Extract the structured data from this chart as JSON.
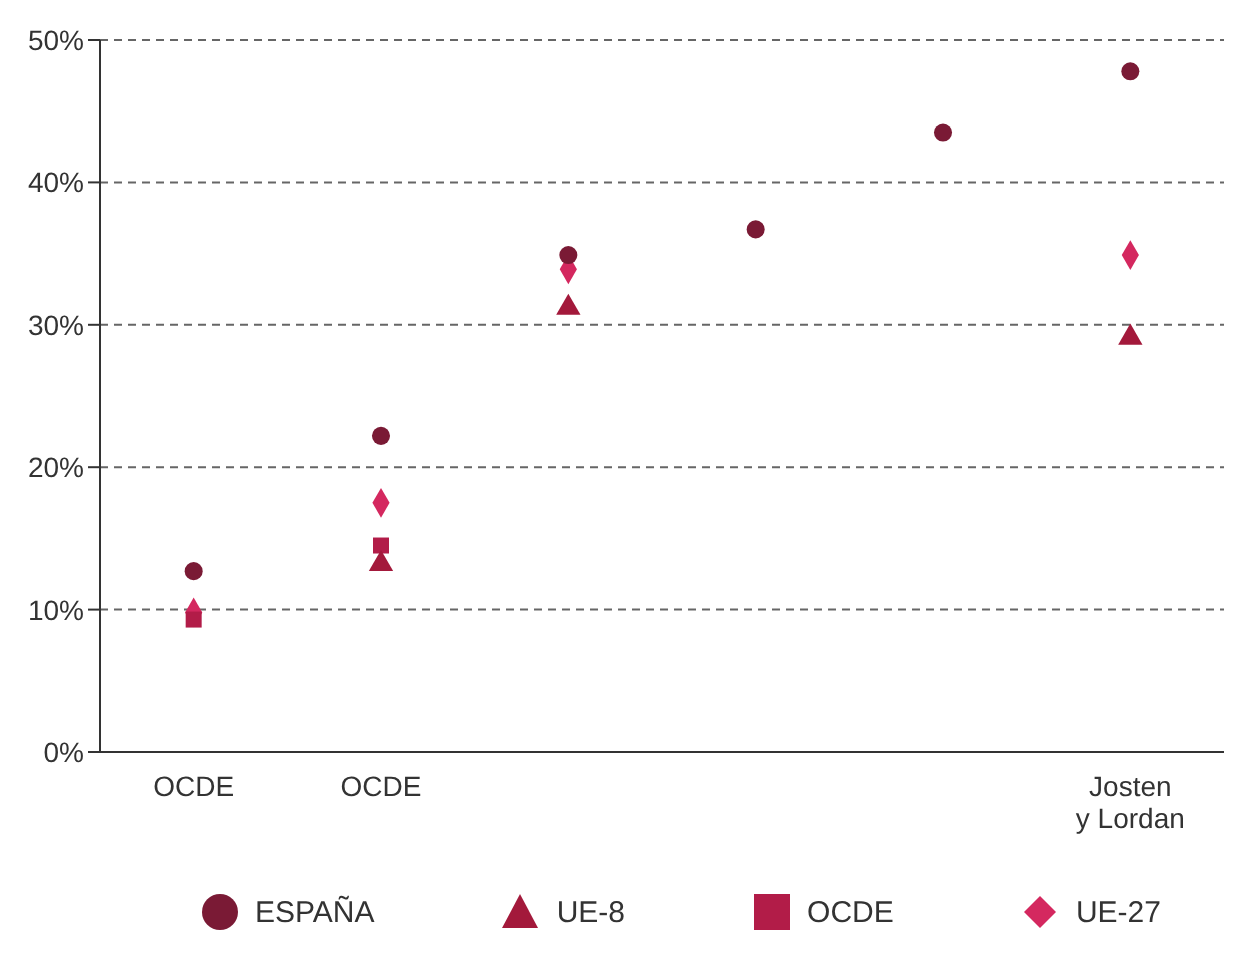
{
  "chart_data": {
    "type": "scatter",
    "categories": [
      "OCDE",
      "OCDE",
      null,
      null,
      null,
      "Josten y Lordan"
    ],
    "series": [
      {
        "name": "ESPAÑA",
        "color": "#7a1a35",
        "marker": "circle",
        "values": [
          12.7,
          22.2,
          34.9,
          36.7,
          43.5,
          47.8
        ]
      },
      {
        "name": "UE-8",
        "color": "#a3193b",
        "marker": "triangle",
        "values": [
          null,
          13.2,
          31.2,
          null,
          null,
          29.1
        ]
      },
      {
        "name": "OCDE",
        "color": "#b21c48",
        "marker": "square",
        "values": [
          9.3,
          14.5,
          null,
          null,
          null,
          null
        ]
      },
      {
        "name": "UE-27",
        "color": "#d4285f",
        "marker": "diamond",
        "values": [
          9.8,
          17.5,
          33.9,
          null,
          null,
          34.9
        ]
      }
    ],
    "ylim": [
      0,
      50
    ],
    "yticks": [
      {
        "value": 0,
        "label": "0%"
      },
      {
        "value": 10,
        "label": "10%"
      },
      {
        "value": 20,
        "label": "20%"
      },
      {
        "value": 30,
        "label": "30%"
      },
      {
        "value": 40,
        "label": "40%"
      },
      {
        "value": 50,
        "label": "50%"
      }
    ],
    "grid": "y",
    "legend": "bottom"
  }
}
